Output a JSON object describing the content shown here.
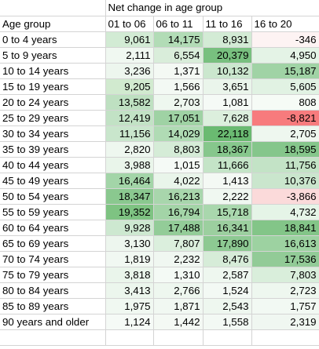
{
  "sheet": {
    "title": "Net change in age group",
    "corner_label": "Age group",
    "columns": [
      "01 to 06",
      "06 to 11",
      "11 to 16",
      "16 to 20"
    ],
    "rows": [
      {
        "label": "0 to 4 years",
        "values": [
          "9,061",
          "14,175",
          "8,931",
          "-346"
        ],
        "colors": [
          "#d2ebd4",
          "#b2dcb6",
          "#d3ebd5",
          "#fdf3f3"
        ]
      },
      {
        "label": "5 to 9 years",
        "values": [
          "2,111",
          "6,554",
          "20,379",
          "4,950"
        ],
        "colors": [
          "#f0f8f1",
          "#d9edda",
          "#78c07f",
          "#e4f3e6"
        ]
      },
      {
        "label": "10 to 14 years",
        "values": [
          "3,236",
          "1,371",
          "10,132",
          "15,187"
        ],
        "colors": [
          "#edf6ee",
          "#f4f9f4",
          "#cbe7ce",
          "#a0d3a5"
        ]
      },
      {
        "label": "15 to 19 years",
        "values": [
          "9,205",
          "1,566",
          "3,651",
          "5,605"
        ],
        "colors": [
          "#d1eacf",
          "#f3f9f4",
          "#eaf5eb",
          "#e1f2e3"
        ]
      },
      {
        "label": "20 to 24 years",
        "values": [
          "13,582",
          "2,703",
          "1,081",
          "808"
        ],
        "colors": [
          "#bee0c1",
          "#eef7ef",
          "#f5faf6",
          "#f6fbf6"
        ]
      },
      {
        "label": "25 to 29 years",
        "values": [
          "12,419",
          "17,051",
          "7,628",
          "-8,821"
        ],
        "colors": [
          "#c2e2c5",
          "#9fd2a4",
          "#dcefdd",
          "#f77b7d"
        ]
      },
      {
        "label": "30 to 34 years",
        "values": [
          "11,156",
          "14,029",
          "22,118",
          "2,705"
        ],
        "colors": [
          "#c9e6cc",
          "#b0dbb4",
          "#6aba71",
          "#eef7ef"
        ]
      },
      {
        "label": "35 to 39 years",
        "values": [
          "2,820",
          "8,803",
          "18,367",
          "18,595"
        ],
        "colors": [
          "#eef7ef",
          "#d5ecd7",
          "#86c78c",
          "#85c68b"
        ]
      },
      {
        "label": "40 to 44 years",
        "values": [
          "3,988",
          "1,015",
          "11,666",
          "11,756"
        ],
        "colors": [
          "#e9f5ea",
          "#f5faf6",
          "#c4e4c7",
          "#c3e3c6"
        ]
      },
      {
        "label": "45 to 49 years",
        "values": [
          "16,464",
          "4,022",
          "1,413",
          "10,376"
        ],
        "colors": [
          "#a3d5a8",
          "#e9f5ea",
          "#f4f9f4",
          "#cae6cd"
        ]
      },
      {
        "label": "50 to 54 years",
        "values": [
          "18,347",
          "16,213",
          "2,222",
          "-3,866"
        ],
        "colors": [
          "#8ac88f",
          "#a8d6ac",
          "#f0f8f1",
          "#fbdada"
        ]
      },
      {
        "label": "55 to 59 years",
        "values": [
          "19,352",
          "16,794",
          "15,718",
          "4,732"
        ],
        "colors": [
          "#7ec382",
          "#a3d4a7",
          "#a9d7ad",
          "#e5f4e7"
        ]
      },
      {
        "label": "60 to 64 years",
        "values": [
          "9,928",
          "17,488",
          "16,341",
          "18,841"
        ],
        "colors": [
          "#cde8d0",
          "#93cc98",
          "#9ccf9f",
          "#83c588"
        ]
      },
      {
        "label": "65 to 69 years",
        "values": [
          "3,130",
          "7,807",
          "17,890",
          "16,613"
        ],
        "colors": [
          "#edf6ee",
          "#dbefdd",
          "#8dc992",
          "#9dd2a1"
        ]
      },
      {
        "label": "70 to 74 years",
        "values": [
          "1,819",
          "2,232",
          "8,476",
          "17,536"
        ],
        "colors": [
          "#f1f8f2",
          "#f0f7f1",
          "#d6ecd8",
          "#92cb97"
        ]
      },
      {
        "label": "75 to 79 years",
        "values": [
          "3,818",
          "1,310",
          "2,587",
          "7,803"
        ],
        "colors": [
          "#eaf5eb",
          "#f4faf5",
          "#eef7ef",
          "#d9eedb"
        ]
      },
      {
        "label": "80 to 84 years",
        "values": [
          "3,413",
          "2,766",
          "1,524",
          "2,723"
        ],
        "colors": [
          "#ecf6ed",
          "#eef7ef",
          "#f3f9f4",
          "#eef7ef"
        ]
      },
      {
        "label": "85 to 89 years",
        "values": [
          "1,975",
          "1,871",
          "2,543",
          "1,757"
        ],
        "colors": [
          "#f0f8f1",
          "#f1f8f2",
          "#eef7ef",
          "#f2f9f3"
        ]
      },
      {
        "label": "90 years and older",
        "values": [
          "1,124",
          "1,442",
          "1,558",
          "2,319"
        ],
        "colors": [
          "#f5faf6",
          "#f4f9f4",
          "#f3f9f4",
          "#f0f7f1"
        ]
      }
    ],
    "blank_rows": 1
  }
}
